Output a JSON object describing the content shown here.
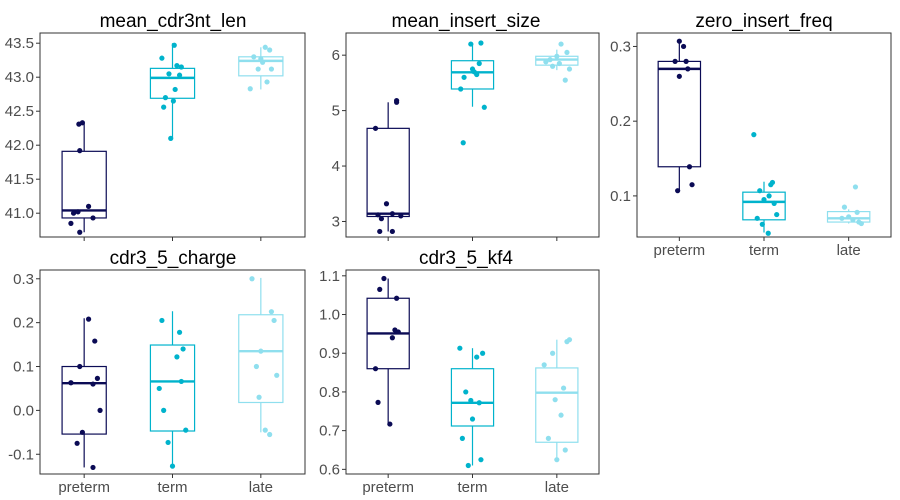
{
  "colors": {
    "preterm": "#0b0b55",
    "term": "#00b3cc",
    "late": "#8fdfee",
    "frame": "#333333",
    "tick": "#4d4d4d"
  },
  "chart_data": [
    {
      "type": "box",
      "title": "mean_cdr3nt_len",
      "categories": [
        "preterm",
        "term",
        "late"
      ],
      "show_x_labels": false,
      "ylim": [
        40.65,
        43.65
      ],
      "yticks": [
        41.0,
        41.5,
        42.0,
        42.5,
        43.0,
        43.5
      ],
      "yticklabels": [
        "41.0",
        "41.5",
        "42.0",
        "42.5",
        "43.0",
        "43.5"
      ],
      "boxes": [
        {
          "q1": 40.93,
          "median": 41.04,
          "q3": 41.91,
          "wlo": 40.72,
          "whi": 42.33
        },
        {
          "q1": 42.69,
          "median": 42.99,
          "q3": 43.13,
          "wlo": 42.1,
          "whi": 43.5
        },
        {
          "q1": 43.02,
          "median": 43.24,
          "q3": 43.3,
          "wlo": 42.82,
          "whi": 43.44
        }
      ],
      "points": [
        [
          [
            -0.15,
            40.85
          ],
          [
            -0.12,
            41.0
          ],
          [
            -0.05,
            40.72
          ],
          [
            0.05,
            41.1
          ],
          [
            0.1,
            40.93
          ],
          [
            -0.05,
            41.92
          ],
          [
            -0.06,
            42.31
          ],
          [
            -0.02,
            42.33
          ],
          [
            -0.07,
            41.02
          ]
        ],
        [
          [
            -0.12,
            43.28
          ],
          [
            0.02,
            43.47
          ],
          [
            -0.08,
            42.7
          ],
          [
            -0.1,
            42.56
          ],
          [
            -0.02,
            42.1
          ],
          [
            0.05,
            43.17
          ],
          [
            0.1,
            43.15
          ],
          [
            0.03,
            42.82
          ],
          [
            0.08,
            43.03
          ],
          [
            0.01,
            42.65
          ],
          [
            -0.04,
            43.05
          ]
        ],
        [
          [
            -0.12,
            42.83
          ],
          [
            -0.08,
            43.3
          ],
          [
            0.05,
            43.44
          ],
          [
            0.12,
            43.12
          ],
          [
            0.0,
            43.27
          ],
          [
            0.07,
            42.93
          ],
          [
            0.1,
            43.4
          ],
          [
            -0.03,
            43.12
          ],
          [
            0.02,
            43.22
          ]
        ]
      ]
    },
    {
      "type": "box",
      "title": "mean_insert_size",
      "categories": [
        "preterm",
        "term",
        "late"
      ],
      "show_x_labels": false,
      "ylim": [
        2.72,
        6.4
      ],
      "yticks": [
        3,
        4,
        5,
        6
      ],
      "yticklabels": [
        "3",
        "4",
        "5",
        "6"
      ],
      "boxes": [
        {
          "q1": 3.09,
          "median": 3.14,
          "q3": 4.68,
          "wlo": 2.82,
          "whi": 5.15
        },
        {
          "q1": 5.39,
          "median": 5.69,
          "q3": 5.9,
          "wlo": 5.07,
          "whi": 6.22
        },
        {
          "q1": 5.82,
          "median": 5.92,
          "q3": 5.98,
          "wlo": 5.73,
          "whi": 6.1
        }
      ],
      "points": [
        [
          [
            -0.15,
            4.68
          ],
          [
            -0.08,
            3.05
          ],
          [
            0.05,
            3.14
          ],
          [
            0.1,
            5.18
          ],
          [
            0.15,
            3.1
          ],
          [
            -0.02,
            3.32
          ],
          [
            -0.1,
            2.82
          ],
          [
            0.05,
            2.82
          ],
          [
            0.1,
            5.15
          ],
          [
            -0.12,
            3.12
          ]
        ],
        [
          [
            -0.14,
            5.39
          ],
          [
            -0.11,
            4.42
          ],
          [
            0.1,
            6.22
          ],
          [
            0.14,
            5.06
          ],
          [
            0.05,
            5.65
          ],
          [
            -0.02,
            6.2
          ],
          [
            0.08,
            5.85
          ],
          [
            -0.1,
            5.6
          ],
          [
            0.02,
            5.7
          ],
          [
            0.0,
            5.75
          ]
        ],
        [
          [
            -0.13,
            5.88
          ],
          [
            0.1,
            5.55
          ],
          [
            0.05,
            6.2
          ],
          [
            0.15,
            5.75
          ],
          [
            0.0,
            5.98
          ],
          [
            -0.08,
            5.92
          ],
          [
            0.12,
            6.05
          ],
          [
            0.03,
            5.85
          ],
          [
            -0.05,
            5.8
          ]
        ]
      ]
    },
    {
      "type": "box",
      "title": "zero_insert_freq",
      "categories": [
        "preterm",
        "term",
        "late"
      ],
      "show_x_labels": true,
      "ylim": [
        0.045,
        0.318
      ],
      "yticks": [
        0.1,
        0.2,
        0.3
      ],
      "yticklabels": [
        "0.1",
        "0.2",
        "0.3"
      ],
      "boxes": [
        {
          "q1": 0.139,
          "median": 0.27,
          "q3": 0.28,
          "wlo": 0.107,
          "whi": 0.307
        },
        {
          "q1": 0.068,
          "median": 0.092,
          "q3": 0.105,
          "wlo": 0.051,
          "whi": 0.119
        },
        {
          "q1": 0.065,
          "median": 0.07,
          "q3": 0.079,
          "wlo": 0.063,
          "whi": 0.082
        }
      ],
      "points": [
        [
          [
            0.0,
            0.307
          ],
          [
            0.05,
            0.3
          ],
          [
            0.1,
            0.27
          ],
          [
            -0.05,
            0.28
          ],
          [
            0.12,
            0.139
          ],
          [
            0.15,
            0.115
          ],
          [
            -0.02,
            0.107
          ],
          [
            0.0,
            0.26
          ],
          [
            0.08,
            0.28
          ]
        ],
        [
          [
            -0.12,
            0.182
          ],
          [
            0.08,
            0.115
          ],
          [
            0.12,
            0.09
          ],
          [
            -0.02,
            0.062
          ],
          [
            0.05,
            0.05
          ],
          [
            0.1,
            0.118
          ],
          [
            0.15,
            0.075
          ],
          [
            -0.05,
            0.107
          ],
          [
            0.0,
            0.095
          ],
          [
            -0.08,
            0.07
          ],
          [
            0.06,
            0.1
          ]
        ],
        [
          [
            -0.05,
            0.085
          ],
          [
            0.08,
            0.112
          ],
          [
            0.12,
            0.065
          ],
          [
            0.15,
            0.063
          ],
          [
            0.0,
            0.072
          ],
          [
            -0.08,
            0.07
          ],
          [
            0.1,
            0.078
          ],
          [
            0.05,
            0.068
          ]
        ]
      ]
    },
    {
      "type": "box",
      "title": "cdr3_5_charge",
      "categories": [
        "preterm",
        "term",
        "late"
      ],
      "show_x_labels": true,
      "ylim": [
        -0.145,
        0.32
      ],
      "yticks": [
        -0.1,
        0.0,
        0.1,
        0.2,
        0.3
      ],
      "yticklabels": [
        "-0.1",
        "0.0",
        "0.1",
        "0.2",
        "0.3"
      ],
      "boxes": [
        {
          "q1": -0.054,
          "median": 0.062,
          "q3": 0.1,
          "wlo": -0.13,
          "whi": 0.21
        },
        {
          "q1": -0.047,
          "median": 0.066,
          "q3": 0.149,
          "wlo": -0.127,
          "whi": 0.226
        },
        {
          "q1": 0.018,
          "median": 0.135,
          "q3": 0.218,
          "wlo": -0.05,
          "whi": 0.302
        }
      ],
      "points": [
        [
          [
            -0.15,
            0.063
          ],
          [
            -0.05,
            0.1
          ],
          [
            0.12,
            0.158
          ],
          [
            0.05,
            0.208
          ],
          [
            0.1,
            0.06
          ],
          [
            0.15,
            0.073
          ],
          [
            -0.08,
            -0.075
          ],
          [
            0.1,
            -0.13
          ],
          [
            -0.02,
            -0.05
          ],
          [
            0.18,
            0.0
          ]
        ],
        [
          [
            -0.12,
            0.205
          ],
          [
            -0.15,
            0.05
          ],
          [
            0.05,
            0.122
          ],
          [
            0.08,
            0.178
          ],
          [
            0.12,
            0.14
          ],
          [
            -0.1,
            0.0
          ],
          [
            -0.05,
            -0.073
          ],
          [
            0.0,
            -0.127
          ],
          [
            0.1,
            0.066
          ],
          [
            0.15,
            -0.045
          ]
        ],
        [
          [
            -0.1,
            0.3
          ],
          [
            -0.05,
            0.1
          ],
          [
            0.12,
            0.225
          ],
          [
            0.15,
            0.205
          ],
          [
            0.05,
            -0.045
          ],
          [
            0.1,
            -0.055
          ],
          [
            0.18,
            0.08
          ],
          [
            -0.02,
            0.03
          ],
          [
            0.0,
            0.135
          ]
        ]
      ]
    },
    {
      "type": "box",
      "title": "cdr3_5_kf4",
      "categories": [
        "preterm",
        "term",
        "late"
      ],
      "show_x_labels": true,
      "ylim": [
        0.588,
        1.115
      ],
      "yticks": [
        0.6,
        0.7,
        0.8,
        0.9,
        1.0,
        1.1
      ],
      "yticklabels": [
        "0.6",
        "0.7",
        "0.8",
        "0.9",
        "1.0",
        "1.1"
      ],
      "boxes": [
        {
          "q1": 0.86,
          "median": 0.951,
          "q3": 1.042,
          "wlo": 0.717,
          "whi": 1.093
        },
        {
          "q1": 0.712,
          "median": 0.772,
          "q3": 0.86,
          "wlo": 0.61,
          "whi": 0.913
        },
        {
          "q1": 0.67,
          "median": 0.798,
          "q3": 0.862,
          "wlo": 0.625,
          "whi": 0.935
        }
      ],
      "points": [
        [
          [
            -0.15,
            0.86
          ],
          [
            -0.1,
            1.065
          ],
          [
            -0.05,
            1.093
          ],
          [
            0.1,
            1.042
          ],
          [
            0.08,
            0.96
          ],
          [
            0.05,
            0.94
          ],
          [
            -0.12,
            0.773
          ],
          [
            0.02,
            0.717
          ],
          [
            0.12,
            0.955
          ]
        ],
        [
          [
            -0.15,
            0.913
          ],
          [
            -0.12,
            0.68
          ],
          [
            -0.05,
            0.61
          ],
          [
            0.05,
            0.89
          ],
          [
            0.12,
            0.9
          ],
          [
            -0.02,
            0.778
          ],
          [
            0.08,
            0.772
          ],
          [
            0.1,
            0.625
          ],
          [
            -0.08,
            0.8
          ],
          [
            0.0,
            0.73
          ]
        ],
        [
          [
            -0.15,
            0.87
          ],
          [
            -0.05,
            0.9
          ],
          [
            0.15,
            0.935
          ],
          [
            0.12,
            0.93
          ],
          [
            0.08,
            0.81
          ],
          [
            0.05,
            0.74
          ],
          [
            -0.1,
            0.68
          ],
          [
            0.0,
            0.625
          ],
          [
            0.1,
            0.65
          ],
          [
            -0.02,
            0.78
          ]
        ]
      ]
    }
  ]
}
